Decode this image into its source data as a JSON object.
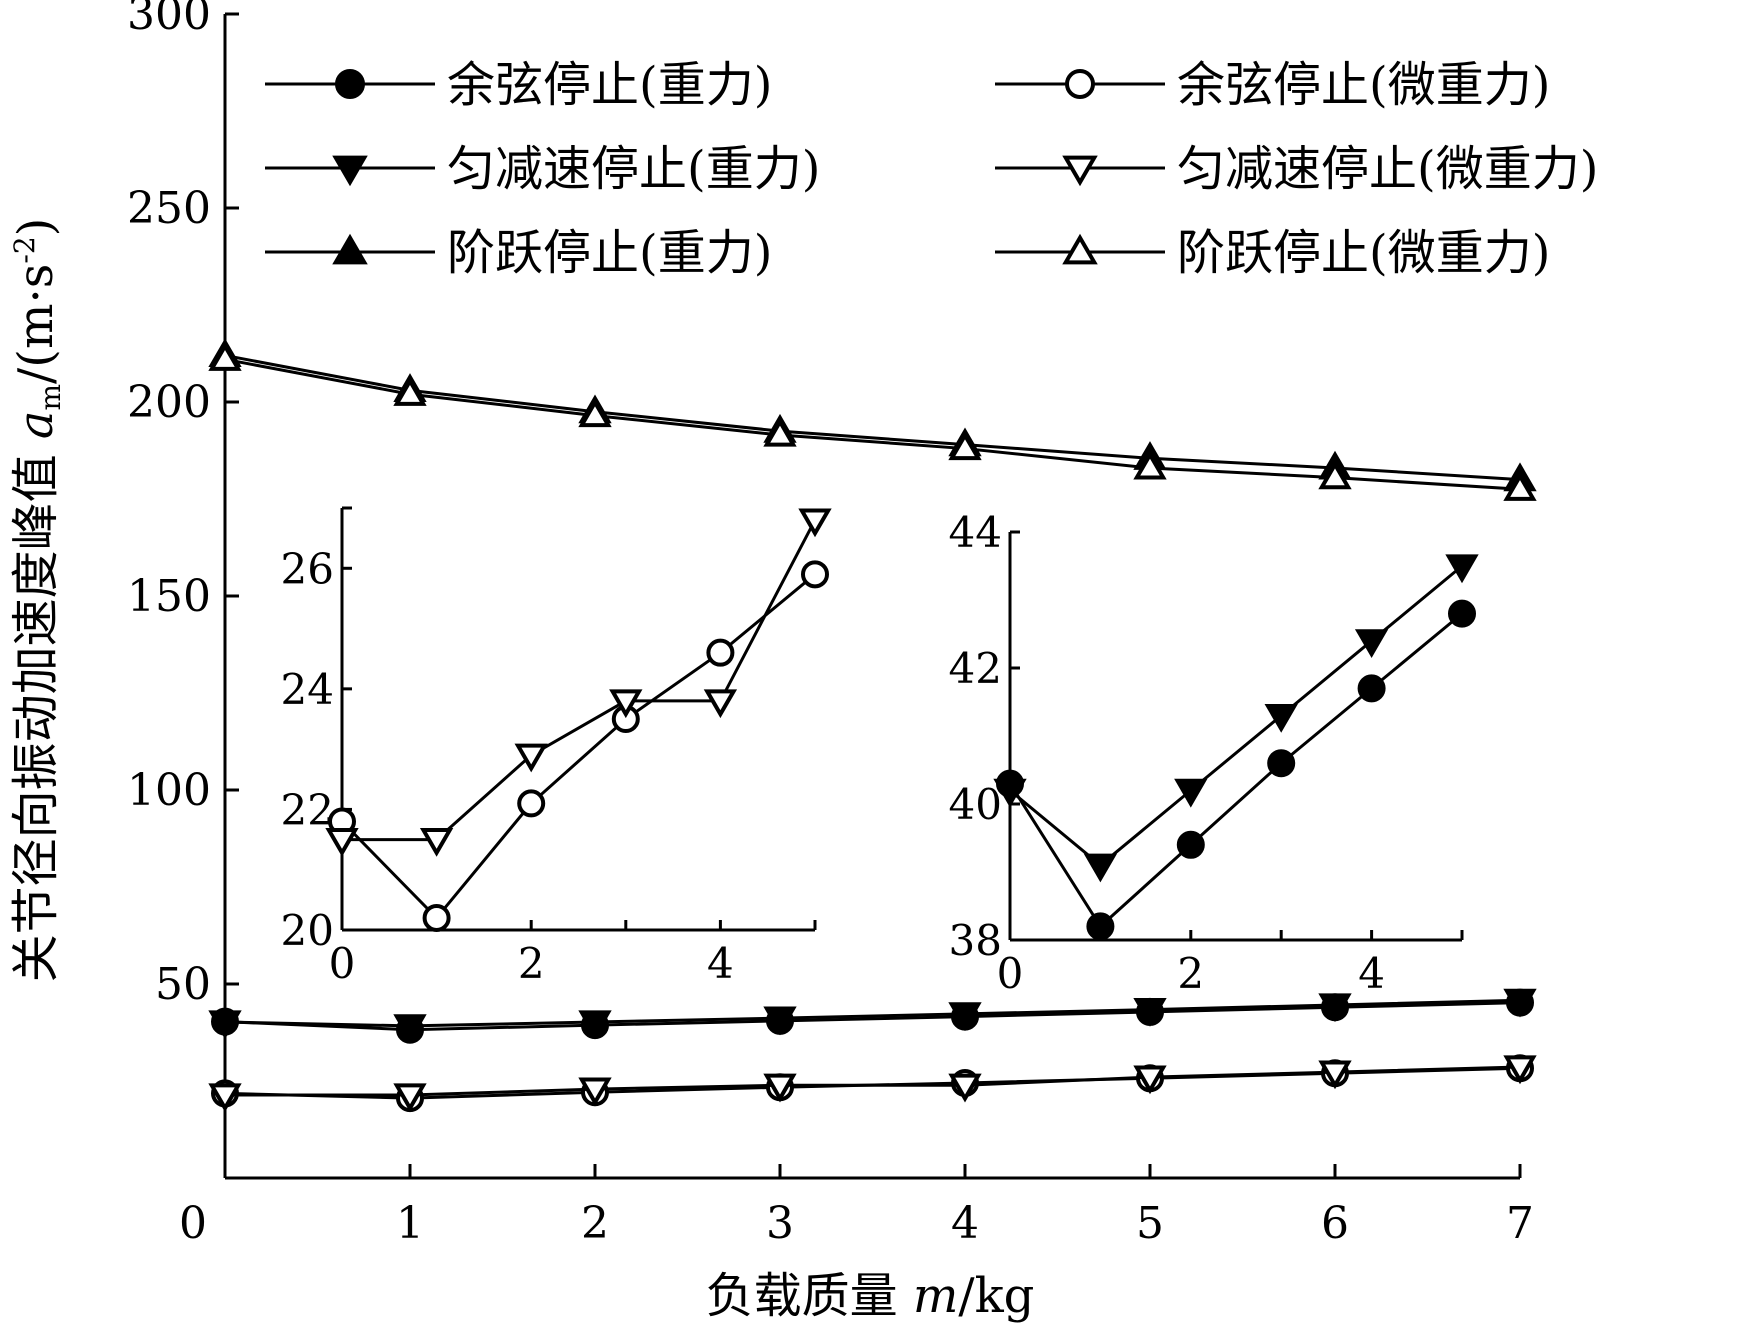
{
  "chart_data": [
    {
      "type": "line",
      "xlabel": "负载质量 m/kg",
      "ylabel": "关节径向振动加速度峰值 a_m/(m·s^-2)",
      "ylabel_parts": {
        "main": "关节径向振动加速度峰值 ",
        "var": "a",
        "sub": "m",
        "unit_open": "/(m·s",
        "sup": "-2",
        "unit_close": ")"
      },
      "xlabel_parts": {
        "main": "负载质量 ",
        "var": "m",
        "unit": "/kg"
      },
      "xlim": [
        0,
        7
      ],
      "ylim": [
        0,
        300
      ],
      "xticks": [
        0,
        1,
        2,
        3,
        4,
        5,
        6,
        7
      ],
      "yticks": [
        50,
        100,
        150,
        200,
        250,
        300
      ],
      "x": [
        0,
        1,
        2,
        3,
        4,
        5,
        6,
        7
      ],
      "grid": false,
      "legend": {
        "placement": "top",
        "columns": 2
      },
      "series": [
        {
          "name": "余弦停止(重力)",
          "marker": "circle",
          "filled": true,
          "values": [
            40.3,
            38.2,
            39.4,
            40.5,
            41.6,
            42.8,
            44.0,
            45.2
          ]
        },
        {
          "name": "余弦停止(微重力)",
          "marker": "circle",
          "filled": false,
          "values": [
            21.8,
            20.6,
            22.1,
            23.4,
            24.5,
            25.7,
            27.0,
            28.3
          ]
        },
        {
          "name": "匀减速停止(重力)",
          "marker": "triangle-down",
          "filled": true,
          "values": [
            40.2,
            39.2,
            40.2,
            41.2,
            42.3,
            43.4,
            44.6,
            45.8
          ]
        },
        {
          "name": "匀减速停止(微重力)",
          "marker": "triangle-down",
          "filled": false,
          "values": [
            21.4,
            21.4,
            22.9,
            23.9,
            23.9,
            26.0,
            27.3,
            28.6
          ]
        },
        {
          "name": "阶跃停止(重力)",
          "marker": "triangle-up",
          "filled": true,
          "values": [
            212.0,
            203.0,
            197.5,
            192.5,
            189.0,
            185.5,
            183.0,
            180.0
          ]
        },
        {
          "name": "阶跃停止(微重力)",
          "marker": "triangle-up",
          "filled": false,
          "values": [
            211.0,
            202.0,
            196.5,
            191.5,
            188.0,
            183.0,
            180.5,
            177.5
          ]
        }
      ]
    },
    {
      "type": "line",
      "xlim": [
        0,
        5
      ],
      "ylim": [
        20,
        27
      ],
      "xticks": [
        0,
        2,
        4
      ],
      "yticks": [
        20,
        22,
        24,
        26
      ],
      "x": [
        0,
        1,
        2,
        3,
        4,
        5
      ],
      "series": [
        {
          "marker": "circle",
          "filled": false,
          "values": [
            21.8,
            20.2,
            22.1,
            23.5,
            24.6,
            25.9
          ]
        },
        {
          "marker": "triangle-down",
          "filled": false,
          "values": [
            21.5,
            21.5,
            22.9,
            23.8,
            23.8,
            26.8
          ]
        }
      ]
    },
    {
      "type": "line",
      "xlim": [
        0,
        5
      ],
      "ylim": [
        38,
        44
      ],
      "xticks": [
        0,
        2,
        4
      ],
      "yticks": [
        38,
        40,
        42,
        44
      ],
      "x": [
        0,
        1,
        2,
        3,
        4,
        5
      ],
      "series": [
        {
          "marker": "circle",
          "filled": true,
          "values": [
            40.3,
            38.2,
            39.4,
            40.6,
            41.7,
            42.8
          ]
        },
        {
          "marker": "triangle-down",
          "filled": true,
          "values": [
            40.2,
            39.1,
            40.2,
            41.3,
            42.4,
            43.5
          ]
        }
      ]
    }
  ]
}
